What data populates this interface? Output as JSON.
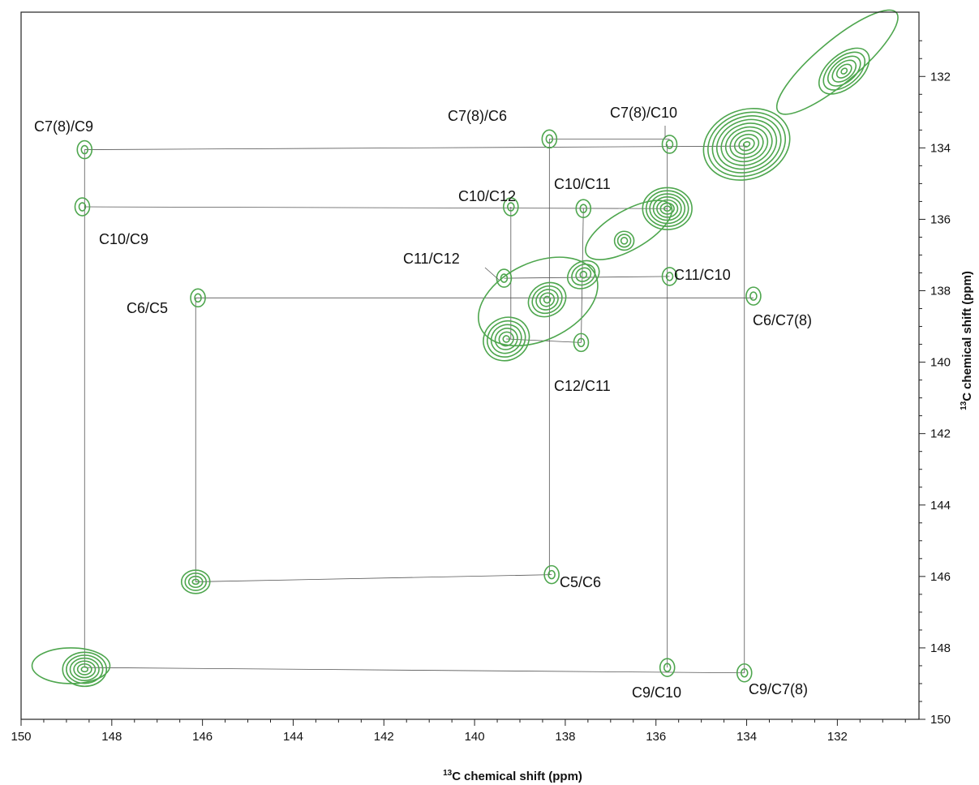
{
  "chart_data": {
    "type": "scatter",
    "subtype": "2D 13C-13C NMR correlation spectrum (contour plot)",
    "title": "",
    "xlabel": "chemical shift (ppm)",
    "xlabel_sup": "13",
    "xlabel_nucleus": "C",
    "ylabel": "chemical shift (ppm)",
    "ylabel_sup": "13",
    "ylabel_nucleus": "C",
    "xlim": [
      150,
      130.2
    ],
    "ylim": [
      130.2,
      150
    ],
    "x_reversed": true,
    "y_increases_downward": true,
    "x_ticks": [
      "150",
      "148",
      "146",
      "144",
      "142",
      "140",
      "138",
      "136",
      "134",
      "132"
    ],
    "y_ticks": [
      "132",
      "134",
      "136",
      "138",
      "140",
      "142",
      "144",
      "146",
      "148",
      "150"
    ],
    "grid": false,
    "contour_color": "#4ea64e",
    "diagonal_peaks": [
      {
        "x": 148.6,
        "y": 148.6,
        "rings": 6
      },
      {
        "x": 146.15,
        "y": 146.15,
        "rings": 4
      },
      {
        "x": 139.3,
        "y": 139.35,
        "rings": 6
      },
      {
        "x": 138.4,
        "y": 138.25,
        "rings": 5
      },
      {
        "x": 137.6,
        "y": 137.55,
        "rings": 4
      },
      {
        "x": 136.7,
        "y": 136.6,
        "rings": 3
      },
      {
        "x": 135.75,
        "y": 135.7,
        "rings": 7
      },
      {
        "x": 134.0,
        "y": 133.9,
        "rings": 10
      },
      {
        "x": 131.85,
        "y": 131.85,
        "rings": 6
      }
    ],
    "cross_peaks": [
      {
        "label": "C7(8)/C9",
        "x": 148.6,
        "y": 134.05
      },
      {
        "label": "C10/C9",
        "x": 148.65,
        "y": 135.65
      },
      {
        "label": "C6/C5",
        "x": 146.1,
        "y": 138.2
      },
      {
        "label": "C7(8)/C6",
        "x": 138.35,
        "y": 133.75
      },
      {
        "label": "C7(8)/C10",
        "x": 135.7,
        "y": 133.9
      },
      {
        "label": "C10/C12",
        "x": 139.2,
        "y": 135.65
      },
      {
        "label": "C10/C11",
        "x": 137.6,
        "y": 135.7
      },
      {
        "label": "C11/C12",
        "x": 139.35,
        "y": 137.65
      },
      {
        "label": "C11/C10",
        "x": 135.7,
        "y": 137.6
      },
      {
        "label": "C6/C7(8)",
        "x": 133.85,
        "y": 138.15
      },
      {
        "label": "C12/C11",
        "x": 137.65,
        "y": 139.45
      },
      {
        "label": "C5/C6",
        "x": 138.3,
        "y": 145.95
      },
      {
        "label": "C9/C10",
        "x": 135.75,
        "y": 148.55
      },
      {
        "label": "C9/C7(8)",
        "x": 134.05,
        "y": 148.7
      }
    ],
    "connection_lines": [
      [
        [
          148.6,
          134.05
        ],
        [
          134.0,
          133.95
        ]
      ],
      [
        [
          148.6,
          135.65
        ],
        [
          135.75,
          135.7
        ]
      ],
      [
        [
          148.6,
          134.05
        ],
        [
          148.6,
          148.55
        ]
      ],
      [
        [
          148.6,
          148.55
        ],
        [
          134.05,
          148.7
        ]
      ],
      [
        [
          146.15,
          138.2
        ],
        [
          133.85,
          138.2
        ]
      ],
      [
        [
          146.15,
          138.2
        ],
        [
          146.15,
          146.15
        ]
      ],
      [
        [
          146.15,
          146.15
        ],
        [
          138.3,
          145.95
        ]
      ],
      [
        [
          138.35,
          133.75
        ],
        [
          138.35,
          145.95
        ]
      ],
      [
        [
          138.35,
          133.75
        ],
        [
          135.7,
          133.75
        ]
      ],
      [
        [
          135.75,
          133.9
        ],
        [
          135.75,
          148.55
        ]
      ],
      [
        [
          134.05,
          133.9
        ],
        [
          134.05,
          148.7
        ]
      ],
      [
        [
          139.2,
          135.65
        ],
        [
          139.2,
          139.35
        ]
      ],
      [
        [
          139.3,
          139.35
        ],
        [
          137.65,
          139.45
        ]
      ],
      [
        [
          137.6,
          135.7
        ],
        [
          137.65,
          139.45
        ]
      ],
      [
        [
          139.35,
          137.65
        ],
        [
          135.7,
          137.6
        ]
      ]
    ],
    "labels": [
      {
        "text": "C7(8)/C9"
      },
      {
        "text": "C10/C9"
      },
      {
        "text": "C6/C5"
      },
      {
        "text": "C7(8)/C6"
      },
      {
        "text": "C7(8)/C10"
      },
      {
        "text": "C10/C12"
      },
      {
        "text": "C10/C11"
      },
      {
        "text": "C11/C12"
      },
      {
        "text": "C11/C10"
      },
      {
        "text": "C6/C7(8)"
      },
      {
        "text": "C12/C11"
      },
      {
        "text": "C5/C6"
      },
      {
        "text": "C9/C10"
      },
      {
        "text": "C9/C7(8)"
      }
    ]
  }
}
